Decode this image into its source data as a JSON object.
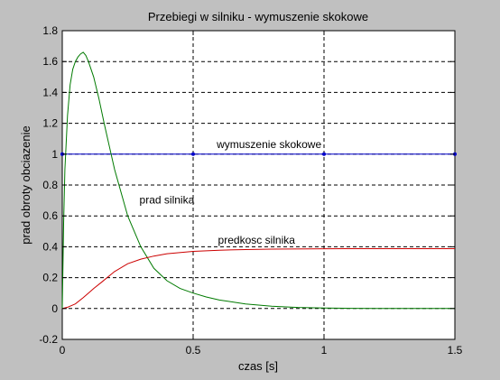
{
  "chart_data": {
    "type": "line",
    "title": "Przebiegi w silniku - wymuszenie skokowe",
    "xlabel": "czas [s]",
    "ylabel": "prad obroty obciazenie",
    "xlim": [
      0,
      1.5
    ],
    "ylim": [
      -0.2,
      1.8
    ],
    "xticks": [
      0,
      0.5,
      1,
      1.5
    ],
    "xtick_labels": [
      "0",
      "0.5",
      "1",
      "1.5"
    ],
    "yticks": [
      -0.2,
      0,
      0.2,
      0.4,
      0.6,
      0.8,
      1,
      1.2,
      1.4,
      1.6,
      1.8
    ],
    "ytick_labels": [
      "-0.2",
      "0",
      "0.2",
      "0.4",
      "0.6",
      "0.8",
      "1",
      "1.2",
      "1.4",
      "1.6",
      "1.8"
    ],
    "grid": true,
    "series": [
      {
        "color": "#0000cc",
        "x": [
          0,
          0.5,
          1.0,
          1.5
        ],
        "y": [
          1,
          1,
          1,
          1
        ]
      },
      {
        "color": "#007a00",
        "x": [
          0,
          0.005,
          0.01,
          0.02,
          0.03,
          0.04,
          0.05,
          0.06,
          0.07,
          0.08,
          0.09,
          0.1,
          0.12,
          0.14,
          0.16,
          0.18,
          0.2,
          0.25,
          0.3,
          0.35,
          0.4,
          0.45,
          0.5,
          0.55,
          0.6,
          0.7,
          0.8,
          0.9,
          1.0,
          1.1,
          1.2,
          1.3,
          1.4,
          1.5
        ],
        "y": [
          0,
          0.55,
          0.9,
          1.25,
          1.45,
          1.55,
          1.6,
          1.63,
          1.65,
          1.66,
          1.64,
          1.6,
          1.5,
          1.36,
          1.2,
          1.05,
          0.9,
          0.6,
          0.4,
          0.26,
          0.18,
          0.13,
          0.1,
          0.075,
          0.055,
          0.03,
          0.015,
          0.007,
          0.003,
          0.001,
          0,
          0,
          0,
          0
        ]
      },
      {
        "color": "#cc0000",
        "x": [
          0,
          0.02,
          0.05,
          0.08,
          0.1,
          0.12,
          0.15,
          0.2,
          0.25,
          0.3,
          0.35,
          0.4,
          0.5,
          0.6,
          0.7,
          0.8,
          1.0,
          1.2,
          1.5
        ],
        "y": [
          0,
          0.008,
          0.03,
          0.07,
          0.1,
          0.13,
          0.17,
          0.24,
          0.29,
          0.32,
          0.34,
          0.355,
          0.37,
          0.378,
          0.382,
          0.385,
          0.387,
          0.388,
          0.388
        ]
      }
    ],
    "annotations": [
      {
        "text": "wymuszenie skokowe",
        "x": 0.59,
        "y": 1.04
      },
      {
        "text": "prad silnika",
        "x": 0.295,
        "y": 0.68
      },
      {
        "text": "predkosc silnika",
        "x": 0.595,
        "y": 0.42
      }
    ]
  }
}
